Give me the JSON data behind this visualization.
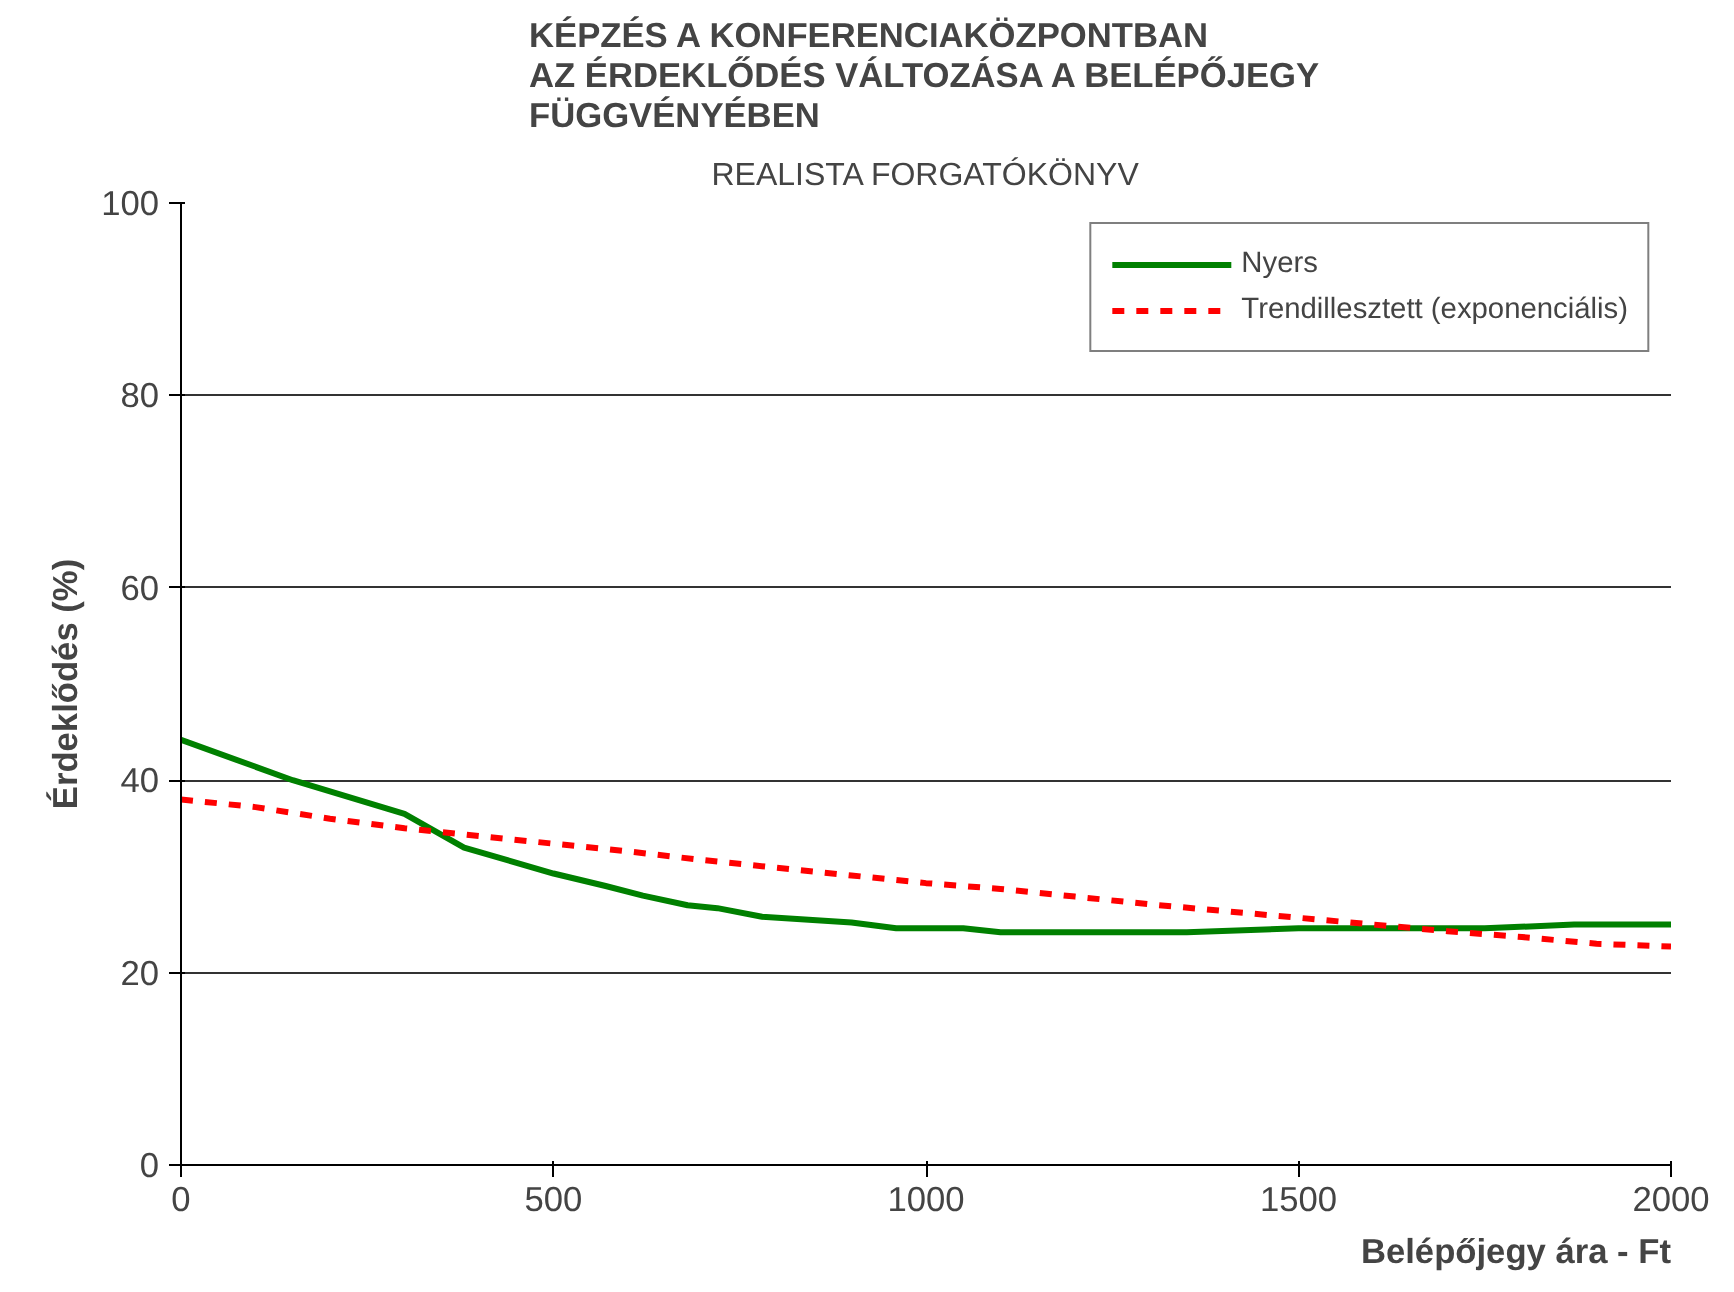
{
  "chart_data": {
    "type": "line",
    "title": "KÉPZÉS A KONFERENCIAKÖZPONTBAN\nAZ ÉRDEKLŐDÉS VÁLTOZÁSA A BELÉPŐJEGY\nFÜGGVÉNYÉBEN",
    "subtitle": "REALISTA FORGATÓKÖNYV",
    "xlabel": "Belépőjegy ára - Ft",
    "ylabel": "Érdeklődés (%)",
    "xlim": [
      0,
      2000
    ],
    "xticks": [
      0,
      500,
      1000,
      1500,
      2000
    ],
    "ylim": [
      0,
      100
    ],
    "yticks": [
      0,
      20,
      40,
      60,
      80,
      100
    ],
    "grid": "y",
    "legend": "top right",
    "series": [
      {
        "name": "Nyers",
        "color": "#008000",
        "line_style": "solid",
        "x": [
          0,
          150,
          300,
          380,
          500,
          570,
          620,
          680,
          720,
          780,
          900,
          960,
          1050,
          1100,
          1350,
          1500,
          1750,
          1870,
          2000
        ],
        "values": [
          44.2,
          40,
          36.5,
          33,
          30.3,
          29,
          28,
          27,
          26.7,
          25.8,
          25.2,
          24.6,
          24.6,
          24.2,
          24.2,
          24.6,
          24.6,
          25,
          25
        ]
      },
      {
        "name": "Trendillesztett (exponenciális)",
        "color": "#ff0000",
        "line_style": "dashed",
        "x": [
          0,
          100,
          200,
          300,
          400,
          500,
          600,
          700,
          800,
          900,
          1000,
          1100,
          1200,
          1300,
          1400,
          1500,
          1600,
          1700,
          1800,
          1900,
          2000
        ],
        "values": [
          38,
          37.2,
          36,
          35,
          34.2,
          33.4,
          32.6,
          31.7,
          30.9,
          30.1,
          29.3,
          28.7,
          27.9,
          27.1,
          26.4,
          25.7,
          25,
          24.3,
          23.7,
          23,
          22.7
        ]
      }
    ]
  }
}
